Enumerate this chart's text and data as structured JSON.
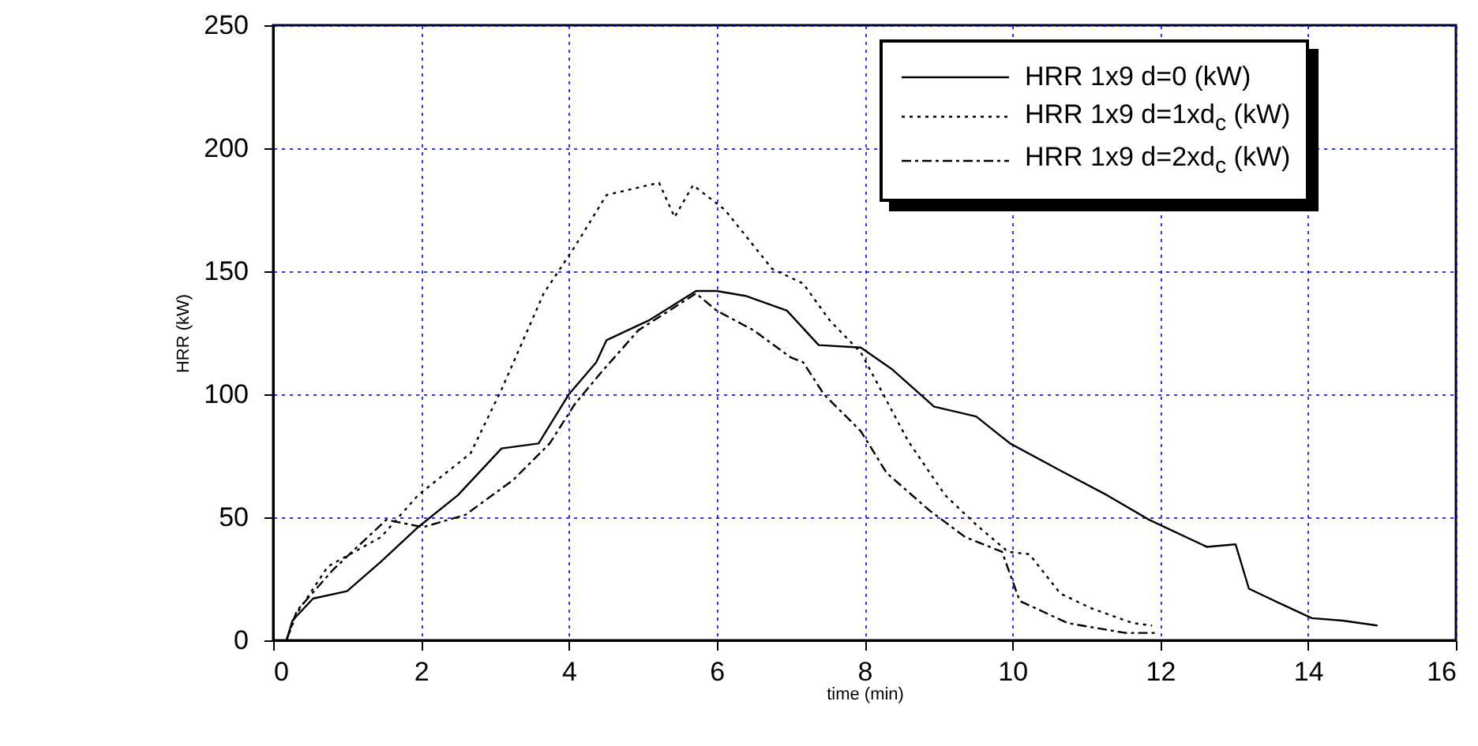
{
  "chart_data": {
    "type": "line",
    "xlabel": "time (min)",
    "ylabel": "HRR (kW)",
    "xlim": [
      0,
      16
    ],
    "xticks": [
      0,
      2,
      4,
      6,
      8,
      10,
      12,
      14,
      16
    ],
    "ylim": [
      0,
      250
    ],
    "yticks": [
      0,
      50,
      100,
      150,
      200,
      250
    ],
    "grid": true,
    "legend": "top right",
    "series": [
      {
        "name": "HRR 1x9 d=0 (kW)",
        "color": "#000000",
        "line_style": "solid",
        "x": [
          0.18,
          0.26,
          0.54,
          1.0,
          1.46,
          1.96,
          2.5,
          3.09,
          3.59,
          4.0,
          4.37,
          4.51,
          5.08,
          5.72,
          6.0,
          6.39,
          6.95,
          7.38,
          7.95,
          8.38,
          8.94,
          9.51,
          9.97,
          10.65,
          11.28,
          11.85,
          12.63,
          13.02,
          13.2,
          13.62,
          14.05,
          14.47,
          14.94
        ],
        "values": [
          0,
          8,
          17,
          20,
          32,
          46,
          59,
          78,
          80,
          100,
          113,
          122,
          130,
          142,
          142,
          140,
          134,
          120,
          119,
          110,
          95,
          91,
          80,
          69,
          59,
          49,
          38,
          39,
          21,
          15,
          9,
          8,
          6
        ]
      },
      {
        "name": "HRR 1x9 d=1xd$_{c}$ (kW)",
        "color": "#000000",
        "line_style": "dotted",
        "x": [
          0.18,
          0.32,
          0.74,
          1.46,
          1.96,
          2.67,
          3.09,
          3.66,
          4.08,
          4.51,
          5.22,
          5.43,
          5.68,
          6.11,
          6.75,
          7.17,
          7.53,
          7.95,
          8.59,
          9.09,
          9.51,
          9.94,
          10.23,
          10.65,
          11.07,
          11.63,
          11.89
        ],
        "values": [
          0,
          11,
          30,
          42,
          59,
          76,
          102,
          141,
          160,
          181,
          186,
          172,
          185,
          175,
          151,
          145,
          130,
          117,
          81,
          59,
          47,
          36,
          35,
          19,
          13,
          7,
          6
        ]
      },
      {
        "name": "HRR 1x9 d=2xd$_{c}$ (kW)",
        "color": "#000000",
        "line_style": "dashed",
        "x": [
          0.18,
          0.32,
          0.82,
          1.53,
          2.03,
          2.6,
          3.24,
          3.74,
          4.08,
          4.44,
          4.94,
          5.72,
          6.0,
          6.5,
          7.0,
          7.17,
          7.45,
          7.95,
          8.3,
          8.87,
          9.36,
          9.86,
          10.1,
          10.75,
          11.53,
          11.96
        ],
        "values": [
          0,
          12,
          29,
          49,
          46,
          51,
          65,
          80,
          96,
          109,
          126,
          141,
          134,
          126,
          115,
          113,
          100,
          85,
          68,
          53,
          42,
          36,
          16,
          7,
          3,
          3
        ]
      }
    ]
  }
}
